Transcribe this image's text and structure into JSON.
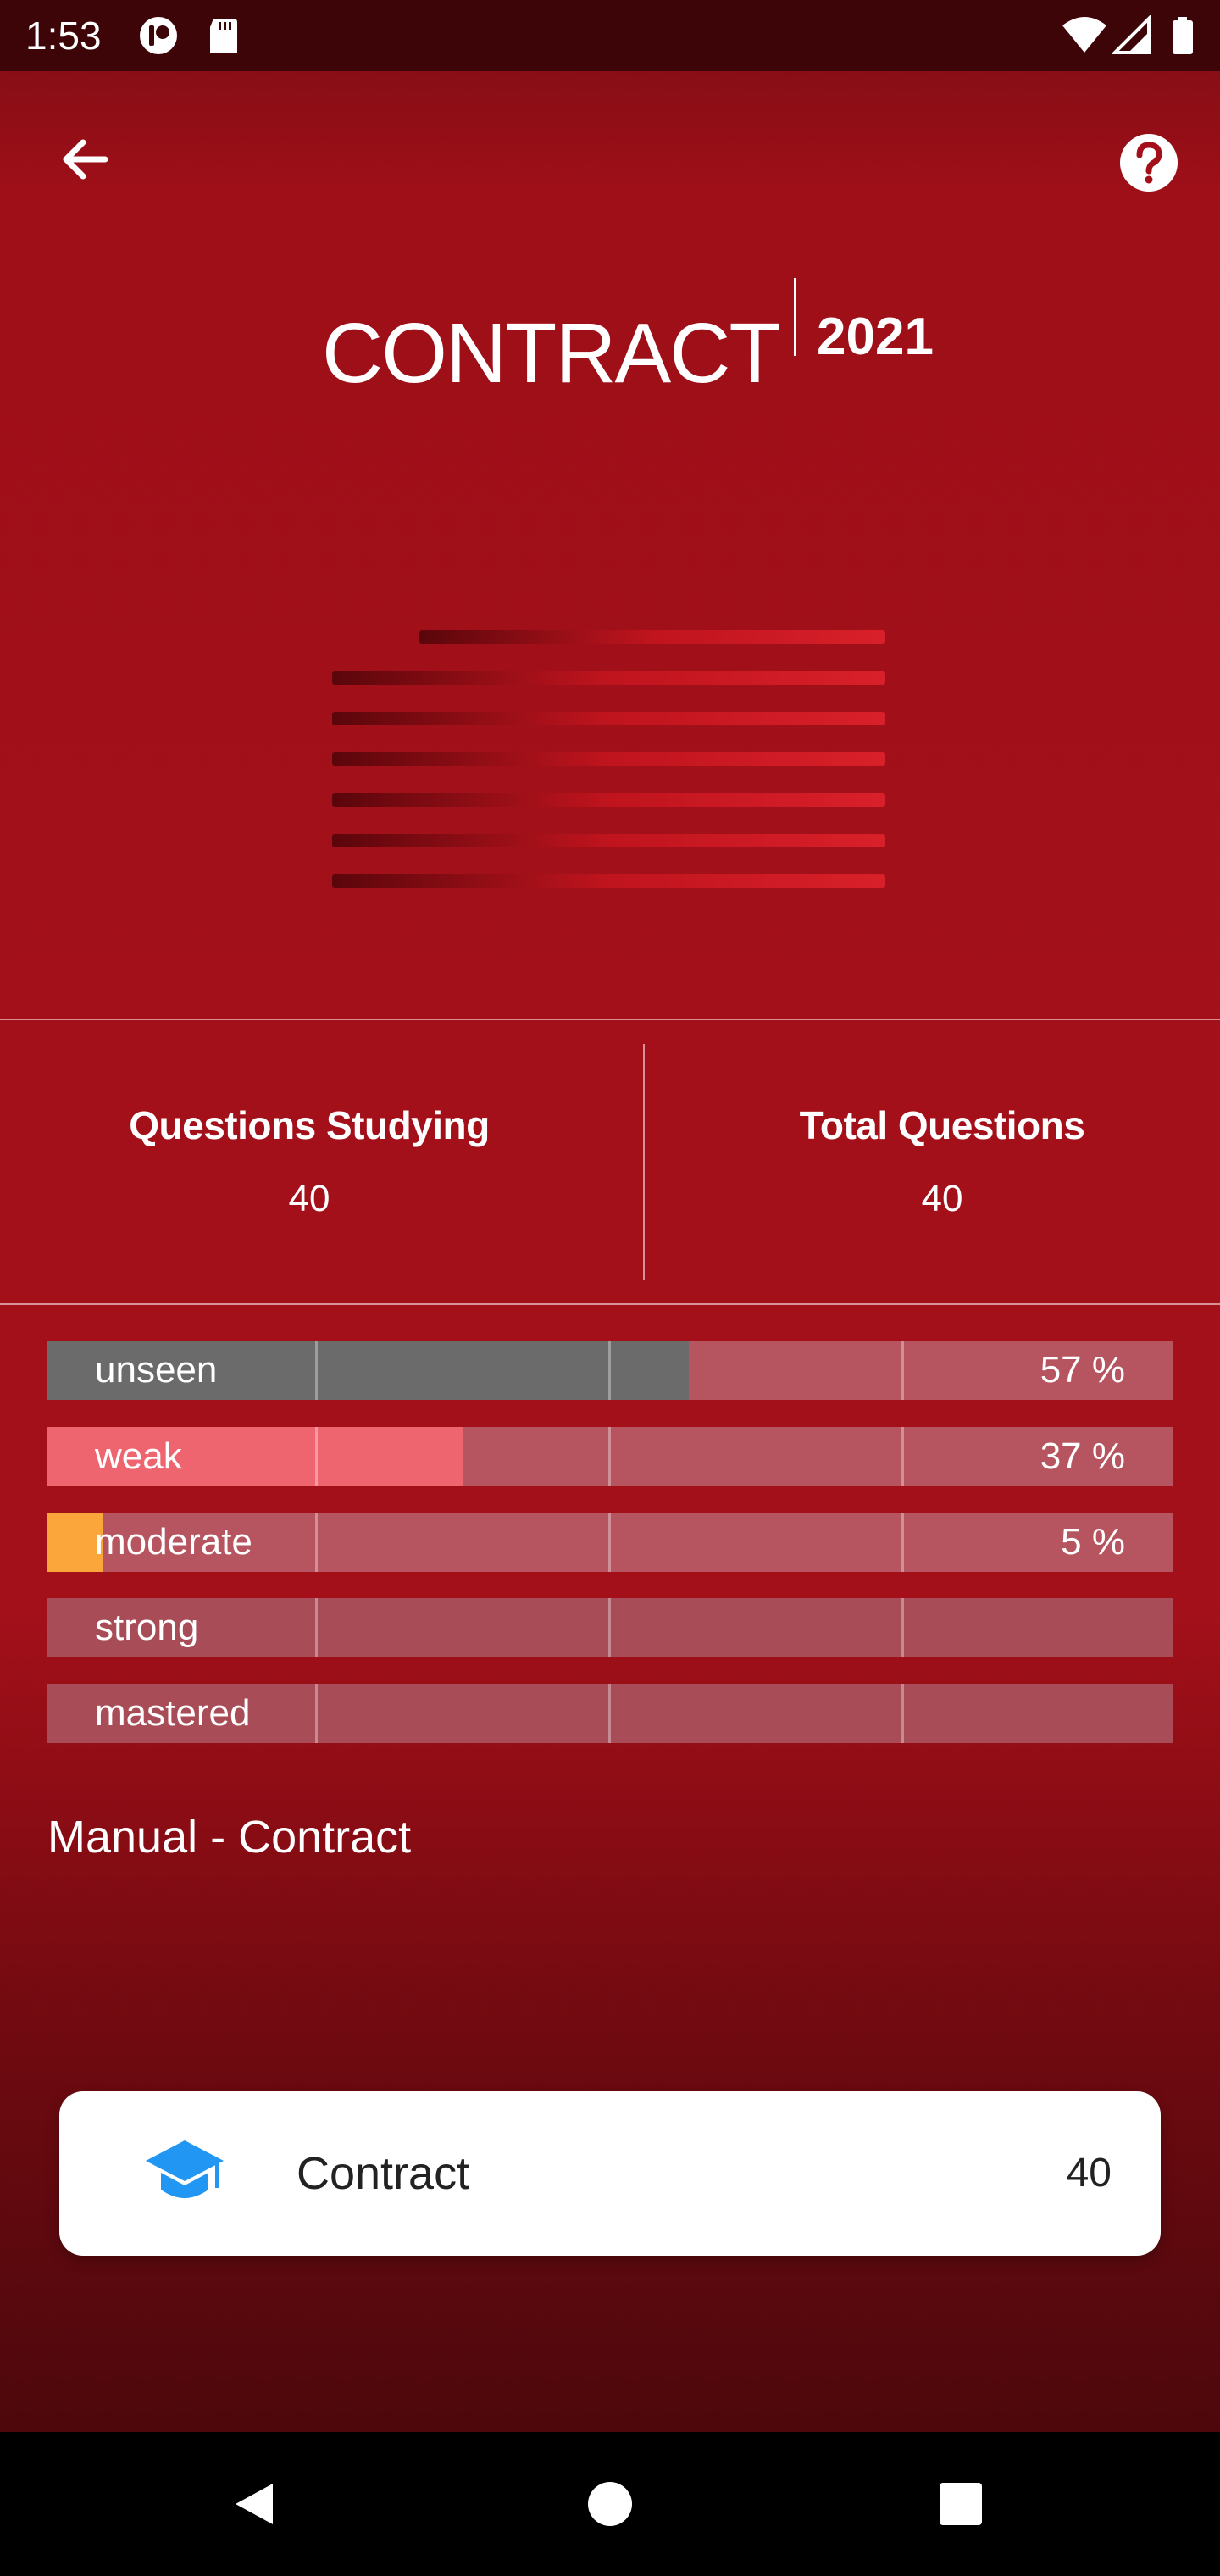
{
  "status_bar": {
    "time": "1:53"
  },
  "app_bar": {
    "back_icon": "arrow-left-icon",
    "help_icon": "help-circle-icon"
  },
  "logo": {
    "word": "CONTRACT",
    "year": "2021"
  },
  "stats": {
    "studying_label": "Questions Studying",
    "studying_value": "40",
    "total_label": "Total Questions",
    "total_value": "40"
  },
  "progress": [
    {
      "label": "unseen",
      "percent_text": "57 %",
      "fill_percent": 57,
      "color": "#6b6b6b"
    },
    {
      "label": "weak",
      "percent_text": "37 %",
      "fill_percent": 37,
      "color": "#ee6570"
    },
    {
      "label": "moderate",
      "percent_text": "5 %",
      "fill_percent": 5,
      "color": "#fba63a"
    },
    {
      "label": "strong",
      "percent_text": "",
      "fill_percent": 0,
      "color": "#4caf50"
    },
    {
      "label": "mastered",
      "percent_text": "",
      "fill_percent": 0,
      "color": "#2196f3"
    }
  ],
  "manual_title": "Manual - Contract",
  "deck": {
    "icon": "graduation-cap-icon",
    "name": "Contract",
    "count": "40",
    "icon_color": "#2196f3"
  },
  "nav": {
    "back_icon": "triangle-back-icon",
    "home_icon": "circle-home-icon",
    "recents_icon": "square-recents-icon"
  }
}
